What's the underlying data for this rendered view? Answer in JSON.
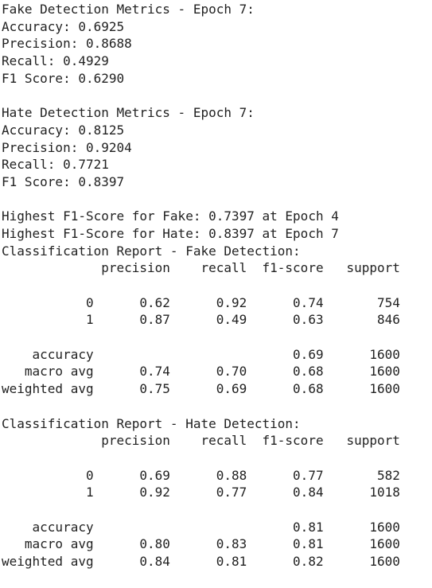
{
  "fake_metrics": {
    "heading": "Fake Detection Metrics - Epoch 7:",
    "lines": [
      "Accuracy: 0.6925",
      "Precision: 0.8688",
      "Recall: 0.4929",
      "F1 Score: 0.6290"
    ]
  },
  "hate_metrics": {
    "heading": "Hate Detection Metrics - Epoch 7:",
    "lines": [
      "Accuracy: 0.8125",
      "Precision: 0.9204",
      "Recall: 0.7721",
      "F1 Score: 0.8397"
    ]
  },
  "highest": [
    "Highest F1-Score for Fake: 0.7397 at Epoch 4",
    "Highest F1-Score for Hate: 0.8397 at Epoch 7"
  ],
  "reports": [
    {
      "title": "Classification Report - Fake Detection:",
      "header": [
        "precision",
        "recall",
        "f1-score",
        "support"
      ],
      "rows": [
        [
          "0",
          "0.62",
          "0.92",
          "0.74",
          "754"
        ],
        [
          "1",
          "0.87",
          "0.49",
          "0.63",
          "846"
        ]
      ],
      "accuracy": {
        "label": "accuracy",
        "f1": "0.69",
        "support": "1600"
      },
      "averages": [
        [
          "macro avg",
          "0.74",
          "0.70",
          "0.68",
          "1600"
        ],
        [
          "weighted avg",
          "0.75",
          "0.69",
          "0.68",
          "1600"
        ]
      ]
    },
    {
      "title": "Classification Report - Hate Detection:",
      "header": [
        "precision",
        "recall",
        "f1-score",
        "support"
      ],
      "rows": [
        [
          "0",
          "0.69",
          "0.88",
          "0.77",
          "582"
        ],
        [
          "1",
          "0.92",
          "0.77",
          "0.84",
          "1018"
        ]
      ],
      "accuracy": {
        "label": "accuracy",
        "f1": "0.81",
        "support": "1600"
      },
      "averages": [
        [
          "macro avg",
          "0.80",
          "0.83",
          "0.81",
          "1600"
        ],
        [
          "weighted avg",
          "0.84",
          "0.81",
          "0.82",
          "1600"
        ]
      ]
    }
  ]
}
